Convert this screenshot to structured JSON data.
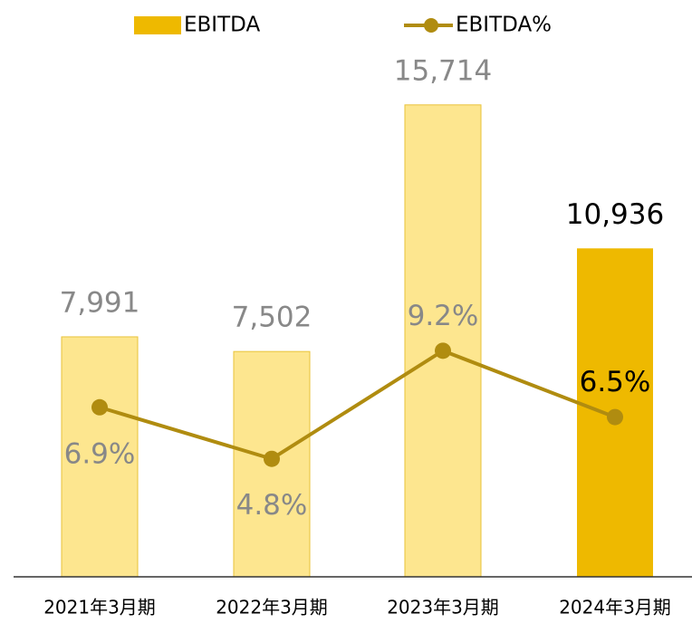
{
  "chart_data": {
    "type": "bar",
    "categories": [
      "2021年3月期",
      "2022年3月期",
      "2023年3月期",
      "2024年3月期"
    ],
    "ylim": [
      0,
      18000
    ],
    "y2lim": [
      0,
      22
    ],
    "series": [
      {
        "name": "EBITDA",
        "type": "bar",
        "color": "#eeb900",
        "colors": [
          "#fde68f",
          "#fde68f",
          "#fde68f",
          "#eeb900"
        ],
        "label_colors": [
          "#888888",
          "#888888",
          "#888888",
          "#000000"
        ],
        "values": [
          7991,
          7502,
          15714,
          10936
        ],
        "value_labels": [
          "7,991",
          "7,502",
          "15,714",
          "10,936"
        ]
      },
      {
        "name": "EBITDA%",
        "type": "line",
        "axis": "y2",
        "color": "#b08c10",
        "label_colors": [
          "#888888",
          "#888888",
          "#888888",
          "#000000"
        ],
        "values": [
          6.9,
          4.8,
          9.2,
          6.5
        ],
        "value_labels": [
          "6.9%",
          "4.8%",
          "9.2%",
          "6.5%"
        ]
      }
    ]
  }
}
